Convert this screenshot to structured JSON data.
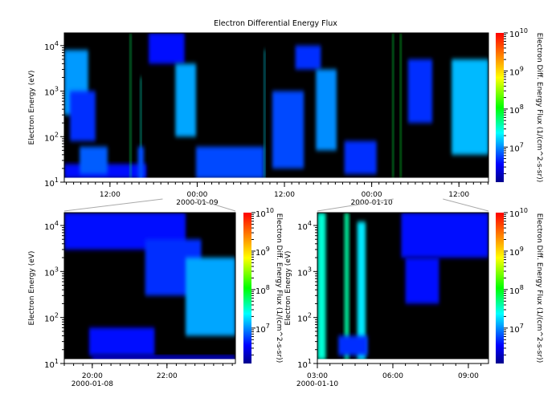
{
  "chart_data": {
    "type": "heatmap",
    "title": "Electron Differential Energy Flux",
    "colorbar": {
      "label": "Electron Diff. Energy Flux (1/(cm^2-s-sr))",
      "scale": "log",
      "range": [
        1200000.0,
        10000000000.0
      ],
      "ticks": [
        "10^7",
        "10^8",
        "10^9",
        "10^10"
      ],
      "colormap": "jet"
    },
    "panels": [
      {
        "id": "overview",
        "ylabel": "Electron Energy (eV)",
        "yscale": "log",
        "ylim": [
          10,
          19000
        ],
        "yticks": [
          10,
          100,
          1000,
          10000
        ],
        "xlim": [
          "2000-01-08T05:43",
          "2000-01-10T16:04"
        ],
        "xticks": [
          {
            "t": "2000-01-08T12:00",
            "label": "12:00",
            "date": ""
          },
          {
            "t": "2000-01-09T00:00",
            "label": "00:00",
            "date": "2000-01-09"
          },
          {
            "t": "2000-01-09T12:00",
            "label": "12:00",
            "date": ""
          },
          {
            "t": "2000-01-10T00:00",
            "label": "00:00",
            "date": "2000-01-10"
          },
          {
            "t": "2000-01-10T12:00",
            "label": "12:00",
            "date": ""
          }
        ],
        "patches": [
          {
            "t0": "2000-01-08T05:43",
            "t1": "2000-01-08T09:00",
            "e0": 300,
            "e1": 8000,
            "flux": 11000000.0
          },
          {
            "t0": "2000-01-08T06:30",
            "t1": "2000-01-08T10:00",
            "e0": 80,
            "e1": 1000,
            "flux": 5000000.0
          },
          {
            "t0": "2000-01-08T05:43",
            "t1": "2000-01-08T17:00",
            "e0": 12,
            "e1": 25,
            "flux": 4000000.0
          },
          {
            "t0": "2000-01-08T07:50",
            "t1": "2000-01-08T11:40",
            "e0": 15,
            "e1": 60,
            "flux": 7000000.0
          },
          {
            "t0": "2000-01-08T14:45",
            "t1": "2000-01-08T14:55",
            "e0": 12,
            "e1": 19000,
            "flux": 60000000.0
          },
          {
            "t0": "2000-01-08T16:10",
            "t1": "2000-01-08T16:20",
            "e0": 12,
            "e1": 2000,
            "flux": 30000000.0
          },
          {
            "t0": "2000-01-08T15:50",
            "t1": "2000-01-08T16:40",
            "e0": 12,
            "e1": 60,
            "flux": 6000000.0
          },
          {
            "t0": "2000-01-08T17:20",
            "t1": "2000-01-08T22:15",
            "e0": 4000,
            "e1": 19000,
            "flux": 4000000.0
          },
          {
            "t0": "2000-01-08T21:00",
            "t1": "2000-01-08T23:50",
            "e0": 100,
            "e1": 4000,
            "flux": 12000000.0
          },
          {
            "t0": "2000-01-08T23:50",
            "t1": "2000-01-09T09:10",
            "e0": 12,
            "e1": 60,
            "flux": 6000000.0
          },
          {
            "t0": "2000-01-09T09:10",
            "t1": "2000-01-09T09:20",
            "e0": 12,
            "e1": 8000,
            "flux": 20000000.0
          },
          {
            "t0": "2000-01-09T10:20",
            "t1": "2000-01-09T14:40",
            "e0": 20,
            "e1": 1000,
            "flux": 6000000.0
          },
          {
            "t0": "2000-01-09T13:30",
            "t1": "2000-01-09T17:00",
            "e0": 3000,
            "e1": 10000,
            "flux": 5000000.0
          },
          {
            "t0": "2000-01-09T16:20",
            "t1": "2000-01-09T19:10",
            "e0": 50,
            "e1": 3000,
            "flux": 10000000.0
          },
          {
            "t0": "2000-01-09T20:15",
            "t1": "2000-01-10T00:40",
            "e0": 15,
            "e1": 80,
            "flux": 5000000.0
          },
          {
            "t0": "2000-01-10T02:50",
            "t1": "2000-01-10T03:00",
            "e0": 12,
            "e1": 19000,
            "flux": 70000000.0
          },
          {
            "t0": "2000-01-10T03:55",
            "t1": "2000-01-10T04:05",
            "e0": 12,
            "e1": 19000,
            "flux": 80000000.0
          },
          {
            "t0": "2000-01-10T05:00",
            "t1": "2000-01-10T08:20",
            "e0": 200,
            "e1": 5000,
            "flux": 5000000.0
          },
          {
            "t0": "2000-01-10T11:00",
            "t1": "2000-01-10T16:04",
            "e0": 40,
            "e1": 5000,
            "flux": 14000000.0
          }
        ]
      },
      {
        "id": "zoom-1",
        "ylabel": "Electron Energy (eV)",
        "yscale": "log",
        "ylim": [
          10,
          19000
        ],
        "yticks": [
          10,
          100,
          1000,
          10000
        ],
        "xlim": [
          "2000-01-08T19:15",
          "2000-01-08T23:50"
        ],
        "zoom_source": [
          "2000-01-08T19:15",
          "2000-01-08T23:50"
        ],
        "xticks": [
          {
            "t": "2000-01-08T20:00",
            "label": "20:00",
            "date": "2000-01-08"
          },
          {
            "t": "2000-01-08T22:00",
            "label": "22:00",
            "date": ""
          }
        ],
        "patches": [
          {
            "t0": "2000-01-08T19:15",
            "t1": "2000-01-08T22:30",
            "e0": 3000,
            "e1": 19000,
            "flux": 4000000.0
          },
          {
            "t0": "2000-01-08T21:25",
            "t1": "2000-01-08T22:55",
            "e0": 300,
            "e1": 5000,
            "flux": 5000000.0
          },
          {
            "t0": "2000-01-08T22:30",
            "t1": "2000-01-08T23:50",
            "e0": 40,
            "e1": 2000,
            "flux": 12000000.0
          },
          {
            "t0": "2000-01-08T19:55",
            "t1": "2000-01-08T21:40",
            "e0": 15,
            "e1": 60,
            "flux": 4000000.0
          },
          {
            "t0": "2000-01-08T20:00",
            "t1": "2000-01-08T23:50",
            "e0": 12,
            "e1": 15,
            "flux": 3000000.0
          }
        ]
      },
      {
        "id": "zoom-2",
        "ylabel": "Electron Energy (eV)",
        "yscale": "log",
        "ylim": [
          10,
          19000
        ],
        "yticks": [
          10,
          100,
          1000,
          10000
        ],
        "xlim": [
          "2000-01-10T03:00",
          "2000-01-10T09:48"
        ],
        "zoom_source": [
          "2000-01-10T03:00",
          "2000-01-10T09:48"
        ],
        "xticks": [
          {
            "t": "2000-01-10T03:00",
            "label": "03:00",
            "date": "2000-01-10"
          },
          {
            "t": "2000-01-10T06:00",
            "label": "06:00",
            "date": ""
          },
          {
            "t": "2000-01-10T09:00",
            "label": "09:00",
            "date": ""
          }
        ],
        "patches": [
          {
            "t0": "2000-01-10T03:00",
            "t1": "2000-01-10T03:20",
            "e0": 12,
            "e1": 19000,
            "flux": 30000000.0
          },
          {
            "t0": "2000-01-10T04:05",
            "t1": "2000-01-10T04:15",
            "e0": 12,
            "e1": 19000,
            "flux": 40000000.0
          },
          {
            "t0": "2000-01-10T04:35",
            "t1": "2000-01-10T04:55",
            "e0": 12,
            "e1": 12000,
            "flux": 20000000.0
          },
          {
            "t0": "2000-01-10T03:50",
            "t1": "2000-01-10T05:00",
            "e0": 15,
            "e1": 40,
            "flux": 5000000.0
          },
          {
            "t0": "2000-01-10T06:20",
            "t1": "2000-01-10T09:48",
            "e0": 2000,
            "e1": 19000,
            "flux": 4000000.0
          },
          {
            "t0": "2000-01-10T06:30",
            "t1": "2000-01-10T07:50",
            "e0": 200,
            "e1": 2000,
            "flux": 4000000.0
          }
        ]
      }
    ]
  }
}
